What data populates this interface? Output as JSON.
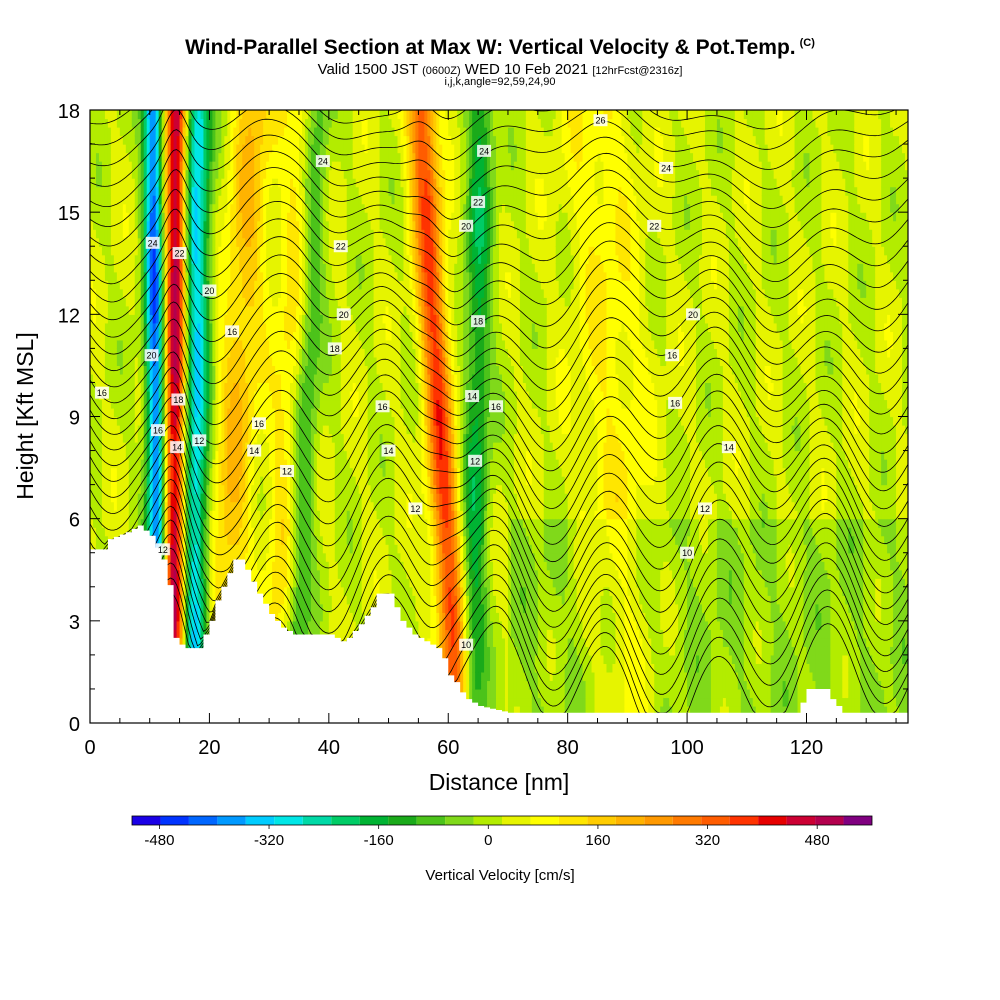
{
  "header": {
    "title": "Wind-Parallel Section at Max W: Vertical Velocity & Pot.Temp.",
    "title_tag": "(C)",
    "subtitle_main": "Valid 1500 JST",
    "subtitle_z": "(0600Z)",
    "subtitle_date": "WED 10 Feb 2021",
    "subtitle_fcst": "[12hrFcst@2316z]",
    "subtitle_ijk": "i,j,k,angle=92,59,24,90"
  },
  "chart_data": {
    "type": "heatmap",
    "xlabel": "Distance [nm]",
    "ylabel": "Height [Kft MSL]",
    "xlim": [
      0,
      137
    ],
    "ylim": [
      0,
      18
    ],
    "x_ticks": [
      0,
      20,
      40,
      60,
      80,
      100,
      120
    ],
    "y_ticks": [
      0,
      3,
      6,
      9,
      12,
      15,
      18
    ],
    "colorbar": {
      "label": "Vertical Velocity [cm/s]",
      "range": [
        -520,
        560
      ],
      "tick_values": [
        -480,
        -320,
        -160,
        0,
        160,
        320,
        480
      ],
      "tick_labels": [
        "-480",
        "-320",
        "-160",
        "0",
        "160",
        "320",
        "480"
      ],
      "colors": [
        "#1a00e6",
        "#0033ff",
        "#0066ff",
        "#0099ff",
        "#00ccff",
        "#00e6e6",
        "#00d9a6",
        "#00cc66",
        "#00b333",
        "#1aaa1a",
        "#4cc31a",
        "#80d91a",
        "#b3ec00",
        "#e6f400",
        "#ffff00",
        "#ffe600",
        "#ffcc00",
        "#ffb300",
        "#ff9900",
        "#ff7a00",
        "#ff5c00",
        "#ff3300",
        "#e60000",
        "#cc0033",
        "#b3004d",
        "#800080"
      ]
    },
    "terrain_nm_kft": [
      [
        0,
        5.1
      ],
      [
        2,
        5.1
      ],
      [
        3,
        5.4
      ],
      [
        6,
        5.6
      ],
      [
        8,
        5.8
      ],
      [
        10,
        5.5
      ],
      [
        12,
        4.8
      ],
      [
        12.6,
        4.3
      ],
      [
        13.4,
        3.8
      ],
      [
        14,
        2.5
      ],
      [
        15.5,
        2.2
      ],
      [
        17,
        2.2
      ],
      [
        18,
        2.2
      ],
      [
        20,
        3.0
      ],
      [
        21,
        3.6
      ],
      [
        22,
        4.0
      ],
      [
        24,
        4.8
      ],
      [
        25,
        4.8
      ],
      [
        26,
        4.5
      ],
      [
        28,
        3.8
      ],
      [
        30,
        3.2
      ],
      [
        32,
        2.8
      ],
      [
        34,
        2.6
      ],
      [
        40,
        2.6
      ],
      [
        42,
        2.4
      ],
      [
        43,
        2.5
      ],
      [
        45,
        2.9
      ],
      [
        47,
        3.4
      ],
      [
        48,
        3.8
      ],
      [
        50,
        3.8
      ],
      [
        51,
        3.4
      ],
      [
        52,
        3.0
      ],
      [
        54,
        2.6
      ],
      [
        56,
        2.4
      ],
      [
        58,
        2.2
      ],
      [
        59,
        1.9
      ],
      [
        60,
        1.4
      ],
      [
        61,
        1.2
      ],
      [
        62,
        0.9
      ],
      [
        63,
        0.7
      ],
      [
        65,
        0.5
      ],
      [
        70,
        0.3
      ],
      [
        118,
        0.3
      ],
      [
        119,
        0.6
      ],
      [
        120,
        1.0
      ],
      [
        123,
        1.0
      ],
      [
        124,
        0.7
      ],
      [
        126,
        0.3
      ],
      [
        137,
        0.3
      ]
    ],
    "updraft_bands": [
      {
        "x_top": 14.5,
        "x_bot": 14.0,
        "peak": 480,
        "width": 1.8
      },
      {
        "x_top": 27.5,
        "x_bot": 21.5,
        "peak": 160,
        "width": 3.5
      },
      {
        "x_top": 36.0,
        "x_bot": 31.0,
        "peak": 120,
        "width": 3.0
      },
      {
        "x_top": 55.5,
        "x_bot": 61.5,
        "peak": 340,
        "width": 2.4
      },
      {
        "x_top": 85.0,
        "x_bot": 90.0,
        "peak": 80,
        "width": 6.0
      }
    ],
    "downdraft_bands": [
      {
        "x_top": 10.5,
        "x_bot": 11.5,
        "peak": -440,
        "width": 1.6
      },
      {
        "x_top": 18.0,
        "x_bot": 17.5,
        "peak": -340,
        "width": 2.2
      },
      {
        "x_top": 38.0,
        "x_bot": 34.0,
        "peak": -160,
        "width": 2.2
      },
      {
        "x_top": 65.5,
        "x_bot": 64.0,
        "peak": -180,
        "width": 2.2
      }
    ],
    "contour_labels": [
      {
        "x": 2.0,
        "y": 9.7,
        "text": "16"
      },
      {
        "x": 10.5,
        "y": 14.1,
        "text": "24"
      },
      {
        "x": 10.3,
        "y": 10.8,
        "text": "20"
      },
      {
        "x": 11.4,
        "y": 8.6,
        "text": "16"
      },
      {
        "x": 12.2,
        "y": 5.1,
        "text": "12"
      },
      {
        "x": 15.0,
        "y": 13.8,
        "text": "22"
      },
      {
        "x": 14.8,
        "y": 9.5,
        "text": "18"
      },
      {
        "x": 14.6,
        "y": 8.1,
        "text": "14"
      },
      {
        "x": 20.0,
        "y": 12.7,
        "text": "20"
      },
      {
        "x": 18.3,
        "y": 8.3,
        "text": "12"
      },
      {
        "x": 23.8,
        "y": 11.5,
        "text": "16"
      },
      {
        "x": 28.3,
        "y": 8.8,
        "text": "16"
      },
      {
        "x": 27.5,
        "y": 8.0,
        "text": "14"
      },
      {
        "x": 33.0,
        "y": 7.4,
        "text": "12"
      },
      {
        "x": 39.0,
        "y": 16.5,
        "text": "24"
      },
      {
        "x": 42.0,
        "y": 14.0,
        "text": "22"
      },
      {
        "x": 42.5,
        "y": 12.0,
        "text": "20"
      },
      {
        "x": 41.0,
        "y": 11.0,
        "text": "18"
      },
      {
        "x": 49.0,
        "y": 9.3,
        "text": "16"
      },
      {
        "x": 50.0,
        "y": 8.0,
        "text": "14"
      },
      {
        "x": 54.5,
        "y": 6.3,
        "text": "12"
      },
      {
        "x": 66.0,
        "y": 16.8,
        "text": "24"
      },
      {
        "x": 65.0,
        "y": 15.3,
        "text": "22"
      },
      {
        "x": 63.0,
        "y": 14.6,
        "text": "20"
      },
      {
        "x": 65.0,
        "y": 11.8,
        "text": "18"
      },
      {
        "x": 64.0,
        "y": 9.6,
        "text": "14"
      },
      {
        "x": 68.0,
        "y": 9.3,
        "text": "16"
      },
      {
        "x": 64.5,
        "y": 7.7,
        "text": "12"
      },
      {
        "x": 63.0,
        "y": 2.3,
        "text": "10"
      },
      {
        "x": 85.5,
        "y": 17.7,
        "text": "26"
      },
      {
        "x": 96.5,
        "y": 16.3,
        "text": "24"
      },
      {
        "x": 94.5,
        "y": 14.6,
        "text": "22"
      },
      {
        "x": 101.0,
        "y": 12.0,
        "text": "20"
      },
      {
        "x": 97.5,
        "y": 10.8,
        "text": "16"
      },
      {
        "x": 98.0,
        "y": 9.4,
        "text": "16"
      },
      {
        "x": 107.0,
        "y": 8.1,
        "text": "14"
      },
      {
        "x": 103.0,
        "y": 6.3,
        "text": "12"
      },
      {
        "x": 100.0,
        "y": 5.0,
        "text": "10"
      }
    ]
  }
}
